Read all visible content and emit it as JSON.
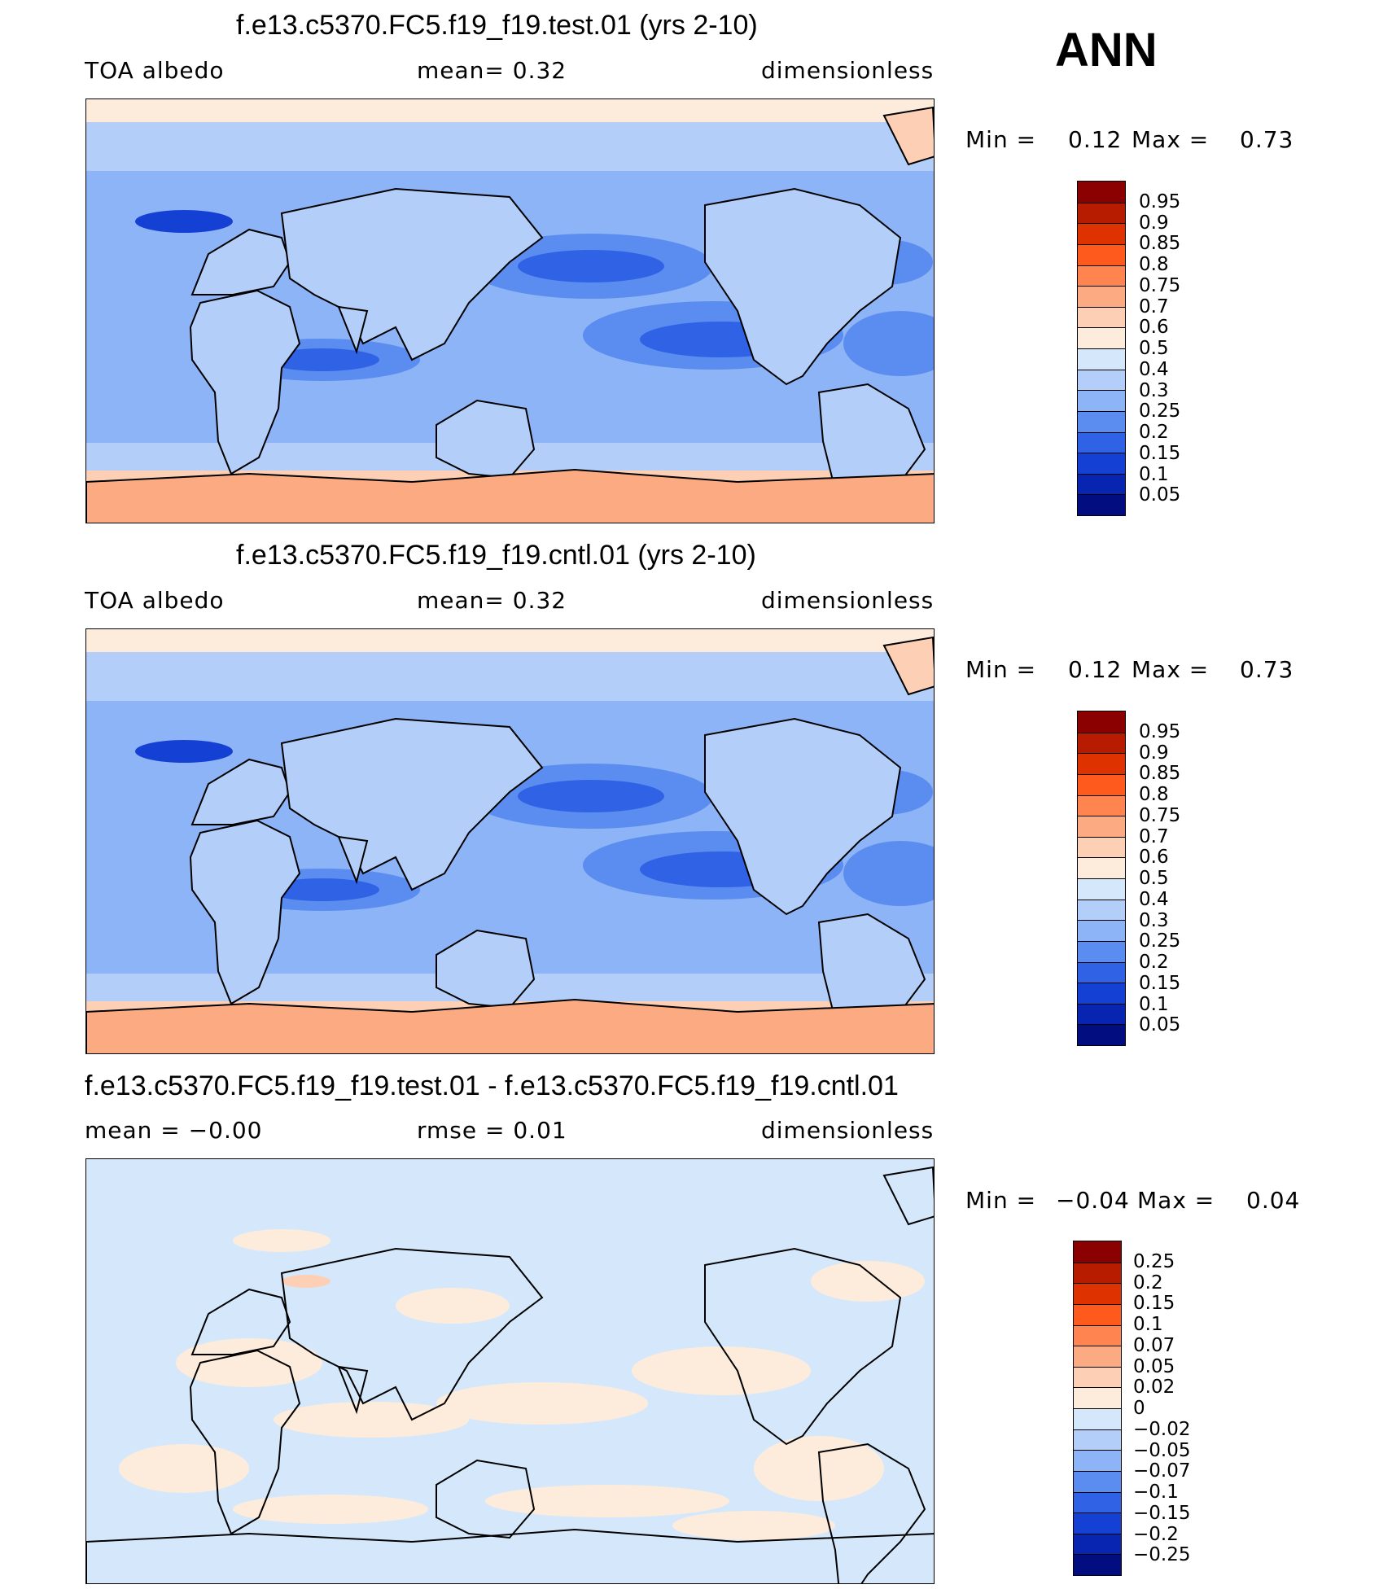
{
  "season": "ANN",
  "panels": [
    {
      "title": "f.e13.c5370.FC5.f19_f19.test.01 (yrs 2-10)",
      "left_label": "TOA  albedo",
      "center_label": "mean=     0.32",
      "right_label": "dimensionless",
      "min_text": "Min  =",
      "min_value": "0.12",
      "max_text": "Max  =",
      "max_value": "0.73",
      "scheme": "abs"
    },
    {
      "title": "f.e13.c5370.FC5.f19_f19.cntl.01 (yrs 2-10)",
      "left_label": "TOA  albedo",
      "center_label": "mean=     0.32",
      "right_label": "dimensionless",
      "min_text": "Min  =",
      "min_value": "0.12",
      "max_text": "Max  =",
      "max_value": "0.73",
      "scheme": "abs"
    },
    {
      "title": "f.e13.c5370.FC5.f19_f19.test.01 - f.e13.c5370.FC5.f19_f19.cntl.01",
      "left_label": "mean  =    −0.00",
      "center_label": "rmse  =     0.01",
      "right_label": "dimensionless",
      "min_text": "Min  =",
      "min_value": "−0.04",
      "max_text": "Max  =",
      "max_value": "0.04",
      "scheme": "diff"
    }
  ],
  "colorbars": {
    "abs": {
      "labels": [
        "0.95",
        "0.9",
        "0.85",
        "0.8",
        "0.75",
        "0.7",
        "0.6",
        "0.5",
        "0.4",
        "0.3",
        "0.25",
        "0.2",
        "0.15",
        "0.1",
        "0.05"
      ],
      "colors": [
        "#8b0000",
        "#b71c00",
        "#de3200",
        "#ff5a1e",
        "#ff8450",
        "#fbaa82",
        "#fdd0b6",
        "#fdecdc",
        "#d5e8fb",
        "#b3cff9",
        "#8db4f6",
        "#5b8df0",
        "#3062e6",
        "#1540d4",
        "#0725b0",
        "#020d80"
      ]
    },
    "diff": {
      "labels": [
        "0.25",
        "0.2",
        "0.15",
        "0.1",
        "0.07",
        "0.05",
        "0.02",
        "0",
        "−0.02",
        "−0.05",
        "−0.07",
        "−0.1",
        "−0.15",
        "−0.2",
        "−0.25"
      ],
      "colors": [
        "#8b0000",
        "#b71c00",
        "#de3200",
        "#ff5a1e",
        "#ff8450",
        "#fbaa82",
        "#fdd0b6",
        "#fdecdc",
        "#d5e8fb",
        "#b3cff9",
        "#8db4f6",
        "#5b8df0",
        "#3062e6",
        "#1540d4",
        "#0725b0",
        "#020d80"
      ]
    }
  },
  "map_colors": {
    "land_abs": "#b3cff9",
    "arctic_band": "#fdecdc",
    "antarctic": "#fbaa82",
    "southern_band": "#fdd0b6",
    "ocean_mid": "#8db4f6",
    "ocean_low": "#5b8df0",
    "ocean_lowest": "#3062e6",
    "ocean_min": "#1540d4",
    "diff_base": "#d5e8fb",
    "diff_pos": "#fdecdc",
    "diff_pos2": "#fdd0b6",
    "coast": "#000000"
  }
}
